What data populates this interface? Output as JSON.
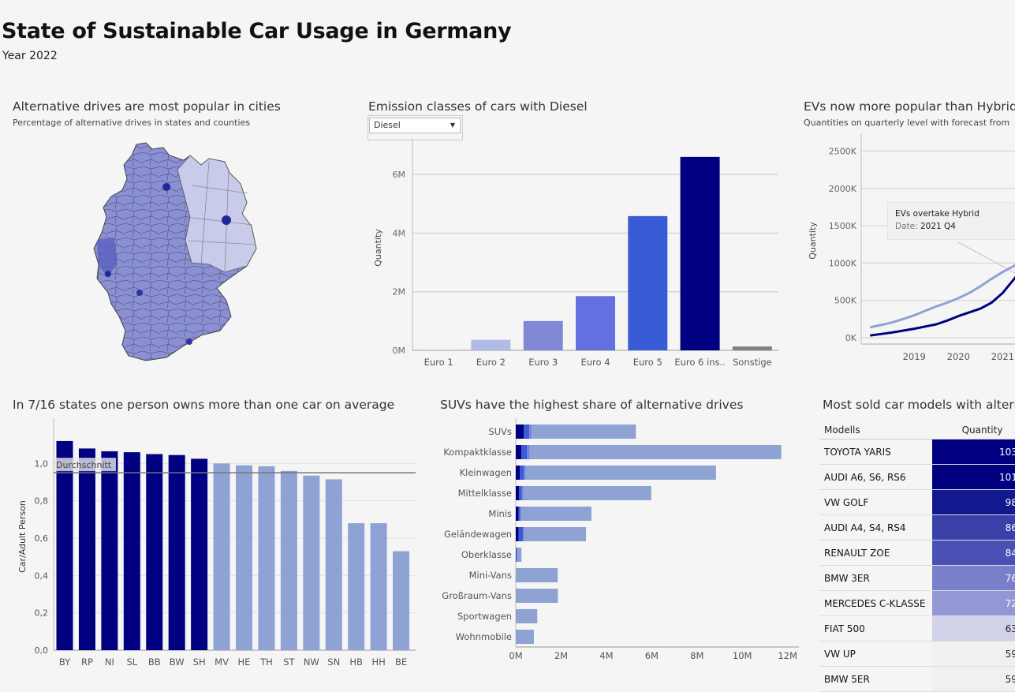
{
  "header": {
    "title": "State of Sustainable Car Usage in Germany",
    "subtitle": "Year 2022"
  },
  "colors": {
    "navy": "#000080",
    "light_blue": "#8fa2d4",
    "royal": "#3a5bd6",
    "grey_bar": "#7f7f7f"
  },
  "map_panel": {
    "title": "Alternative drives are most popular in cities",
    "subtitle": "Percentage of alternative drives in states and counties"
  },
  "emission_panel": {
    "title": "Emission classes of cars with Diesel",
    "filter": {
      "selected": "Diesel"
    },
    "chart_data": {
      "type": "bar",
      "categories": [
        "Euro 1",
        "Euro 2",
        "Euro 3",
        "Euro 4",
        "Euro 5",
        "Euro 6 ins..",
        "Sonstige"
      ],
      "values": [
        0.04,
        0.36,
        1.0,
        1.85,
        4.58,
        6.6,
        0.13
      ],
      "colors": [
        "#d9dbed",
        "#b0bbe6",
        "#8288d6",
        "#6371e0",
        "#3a5bd6",
        "#000080",
        "#7f7f7f"
      ],
      "ylabel": "Quantity",
      "ylim": [
        0,
        7
      ],
      "yticks": [
        0,
        2,
        4,
        6
      ],
      "ytick_labels": [
        "0M",
        "2M",
        "4M",
        "6M"
      ],
      "grid": true
    }
  },
  "ev_panel": {
    "title": "EVs now more popular than Hybrids",
    "subtitle": "Quantities on quarterly level with forecast from",
    "tooltip": {
      "line1": "EVs overtake Hybrid",
      "date_label": "Date:",
      "date_value": "2021 Q4"
    },
    "chart_data": {
      "type": "line",
      "ylabel": "Quantity",
      "ylim": [
        0,
        2600
      ],
      "yticks": [
        0,
        500,
        1000,
        1500,
        2000,
        2500
      ],
      "ytick_labels": [
        "0K",
        "500K",
        "1000K",
        "1500K",
        "2000K",
        "2500K"
      ],
      "xtick_labels": [
        "2019",
        "2020",
        "2021"
      ],
      "x": [
        2018.5,
        2018.75,
        2019.0,
        2019.25,
        2019.5,
        2019.75,
        2020.0,
        2020.25,
        2020.5,
        2020.75,
        2021.0,
        2021.25,
        2021.5,
        2021.75,
        2022.0
      ],
      "series": [
        {
          "name": "",
          "color": "#8fa2d4",
          "values": [
            140,
            170,
            205,
            250,
            300,
            360,
            420,
            470,
            530,
            600,
            690,
            790,
            880,
            960,
            1030
          ]
        },
        {
          "name": "",
          "color": "#000080",
          "values": [
            30,
            50,
            70,
            95,
            120,
            150,
            180,
            230,
            290,
            340,
            390,
            470,
            600,
            780,
            980
          ]
        }
      ]
    }
  },
  "ownership_panel": {
    "title": "In 7/16 states one person owns more than one car on average",
    "reference_label": "Durchschnitt",
    "chart_data": {
      "type": "bar",
      "categories": [
        "BY",
        "RP",
        "NI",
        "SL",
        "BB",
        "BW",
        "SH",
        "MV",
        "HE",
        "TH",
        "ST",
        "NW",
        "SN",
        "HB",
        "HH",
        "BE"
      ],
      "values": [
        1.12,
        1.08,
        1.065,
        1.06,
        1.05,
        1.045,
        1.025,
        1.0,
        0.99,
        0.985,
        0.96,
        0.935,
        0.915,
        0.68,
        0.68,
        0.53
      ],
      "highlight_count": 7,
      "ylabel": "Car/Adult Person",
      "ylim": [
        0,
        1.2
      ],
      "yticks": [
        0,
        0.2,
        0.4,
        0.6,
        0.8,
        1.0
      ],
      "ytick_labels": [
        "0,0",
        "0,2",
        "0,4",
        "0,6",
        "0,8",
        "1,0"
      ],
      "reference_value": 0.95
    }
  },
  "suv_panel": {
    "title": "SUVs have the highest share of alternative drives",
    "chart_data": {
      "type": "bar",
      "orientation": "horizontal",
      "categories": [
        "SUVs",
        "Kompaktklasse",
        "Kleinwagen",
        "Mittelklasse",
        "Minis",
        "Geländewagen",
        "Oberklasse",
        "Mini-Vans",
        "Großraum-Vans",
        "Sportwagen",
        "Wohnmobile"
      ],
      "series": [
        {
          "name": "",
          "color": "#000080",
          "values": [
            0.35,
            0.25,
            0.18,
            0.15,
            0.12,
            0.12,
            0.0,
            0.0,
            0.0,
            0.0,
            0.0
          ]
        },
        {
          "name": "",
          "color": "#3a5bd6",
          "values": [
            0.25,
            0.25,
            0.18,
            0.12,
            0.08,
            0.2,
            0.05,
            0.0,
            0.0,
            0.0,
            0.0
          ]
        },
        {
          "name": "",
          "color": "#6f86e0",
          "values": [
            0.1,
            0.12,
            0.08,
            0.06,
            0.04,
            0.05,
            0.03,
            0.0,
            0.0,
            0.0,
            0.0
          ]
        },
        {
          "name": "",
          "color": "#8fa2d4",
          "values": [
            4.6,
            11.1,
            8.4,
            5.65,
            3.1,
            2.73,
            0.17,
            1.85,
            1.86,
            0.95,
            0.8
          ]
        }
      ],
      "xlim": [
        0,
        12.5
      ],
      "xticks": [
        0,
        2,
        4,
        6,
        8,
        10,
        12
      ],
      "xtick_labels": [
        "0M",
        "2M",
        "4M",
        "6M",
        "8M",
        "10M",
        "12M"
      ]
    }
  },
  "models_panel": {
    "title": "Most sold car models with altern",
    "col_model": "Modells",
    "col_qty": "Quantity",
    "rows": [
      {
        "model": "TOYOTA YARIS",
        "qty": "103.22",
        "color": "#000080"
      },
      {
        "model": "AUDI A6, S6, RS6",
        "qty": "101.81",
        "color": "#000080"
      },
      {
        "model": "VW GOLF",
        "qty": "98.48",
        "color": "#121890"
      },
      {
        "model": "AUDI A4, S4, RS4",
        "qty": "86.74",
        "color": "#3a40a8"
      },
      {
        "model": "RENAULT ZOE",
        "qty": "84.45",
        "color": "#4a50b4"
      },
      {
        "model": "BMW 3ER",
        "qty": "76.48",
        "color": "#7a7fca"
      },
      {
        "model": "MERCEDES C-KLASSE",
        "qty": "72.11",
        "color": "#9398d4"
      },
      {
        "model": "FIAT 500",
        "qty": "63.38",
        "color": "#d2d3ea"
      },
      {
        "model": "VW UP",
        "qty": "59.44",
        "color": "#f0f0f0"
      },
      {
        "model": "BMW 5ER",
        "qty": "59.34",
        "color": "#f0f0f0"
      }
    ]
  }
}
